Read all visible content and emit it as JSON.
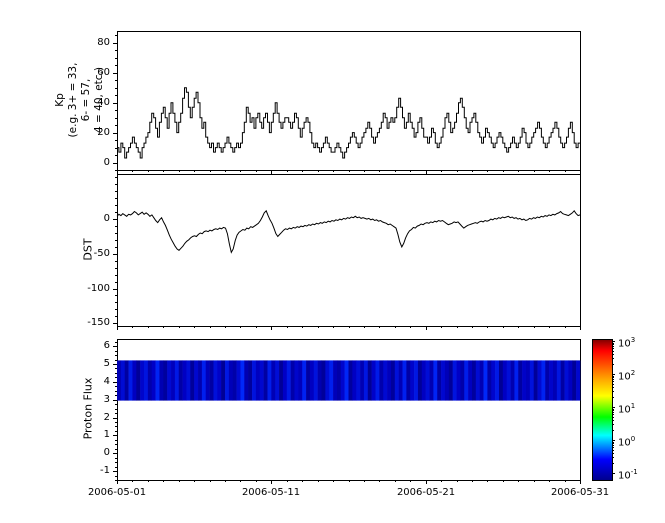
{
  "figure": {
    "background": "#ffffff",
    "x_axis": {
      "tick_labels": [
        "2006-05-01",
        "2006-05-11",
        "2006-05-21",
        "2006-05-31"
      ],
      "span_days": 30,
      "major_tick_days": 10,
      "minor_tick_days": 1
    }
  },
  "chart_data": [
    {
      "type": "line",
      "style": "step",
      "name": "kp-index",
      "ylabel_lines": [
        "Kp",
        "(e.g. 3+ = 33,",
        "6- = 57,",
        "4 = 40, etc.)"
      ],
      "yticks": [
        0,
        20,
        40,
        60,
        80
      ],
      "y_minor_step": 5,
      "ylim": [
        -5,
        88
      ],
      "line_color": "#000000",
      "x_start": "2006-05-01",
      "x_end": "2006-05-31",
      "sample_hours": 3,
      "values": [
        10,
        7,
        13,
        10,
        3,
        7,
        10,
        13,
        17,
        13,
        10,
        7,
        3,
        10,
        13,
        17,
        20,
        27,
        33,
        30,
        23,
        17,
        27,
        33,
        37,
        30,
        23,
        33,
        40,
        33,
        27,
        20,
        27,
        33,
        43,
        50,
        47,
        37,
        30,
        37,
        43,
        47,
        40,
        30,
        23,
        27,
        17,
        13,
        10,
        13,
        7,
        10,
        13,
        10,
        7,
        10,
        13,
        17,
        13,
        10,
        7,
        10,
        13,
        10,
        13,
        20,
        27,
        37,
        33,
        27,
        30,
        23,
        30,
        33,
        27,
        23,
        30,
        33,
        27,
        20,
        27,
        33,
        40,
        33,
        27,
        23,
        27,
        30,
        30,
        27,
        23,
        27,
        33,
        30,
        23,
        17,
        23,
        27,
        30,
        27,
        20,
        13,
        10,
        13,
        10,
        7,
        10,
        13,
        17,
        13,
        10,
        7,
        7,
        10,
        13,
        10,
        7,
        3,
        7,
        10,
        13,
        17,
        20,
        17,
        13,
        10,
        13,
        17,
        20,
        23,
        27,
        23,
        17,
        13,
        17,
        20,
        23,
        27,
        33,
        30,
        23,
        27,
        30,
        27,
        30,
        37,
        43,
        37,
        30,
        23,
        27,
        33,
        27,
        23,
        17,
        20,
        27,
        30,
        23,
        17,
        17,
        13,
        17,
        23,
        20,
        13,
        10,
        13,
        17,
        23,
        30,
        33,
        27,
        20,
        23,
        27,
        33,
        40,
        43,
        37,
        30,
        23,
        20,
        27,
        30,
        33,
        27,
        20,
        17,
        13,
        17,
        23,
        20,
        17,
        13,
        10,
        13,
        17,
        20,
        17,
        13,
        10,
        7,
        10,
        13,
        17,
        13,
        10,
        13,
        17,
        23,
        20,
        13,
        10,
        13,
        17,
        20,
        23,
        27,
        23,
        17,
        13,
        10,
        13,
        17,
        20,
        23,
        27,
        23,
        17,
        13,
        10,
        13,
        17,
        23,
        27,
        20,
        13,
        10,
        13
      ]
    },
    {
      "type": "line",
      "name": "dst-index",
      "ylabel": "DST",
      "yticks": [
        0,
        -50,
        -100,
        -150
      ],
      "y_minor_step": 10,
      "ylim": [
        -154,
        65
      ],
      "line_color": "#000000",
      "values": [
        4,
        7,
        5,
        8,
        6,
        4,
        7,
        6,
        8,
        11,
        9,
        6,
        8,
        10,
        7,
        9,
        7,
        4,
        6,
        2,
        -2,
        -5,
        -1,
        2,
        -4,
        -9,
        -16,
        -23,
        -29,
        -34,
        -39,
        -43,
        -45,
        -42,
        -39,
        -35,
        -32,
        -30,
        -27,
        -25,
        -24,
        -25,
        -22,
        -20,
        -21,
        -18,
        -17,
        -18,
        -16,
        -17,
        -15,
        -14,
        -15,
        -13,
        -14,
        -12,
        -13,
        -21,
        -36,
        -48,
        -43,
        -31,
        -23,
        -19,
        -17,
        -15,
        -16,
        -13,
        -14,
        -11,
        -12,
        -10,
        -8,
        -6,
        -2,
        3,
        9,
        12,
        5,
        -1,
        -6,
        -13,
        -21,
        -25,
        -22,
        -19,
        -16,
        -14,
        -15,
        -13,
        -14,
        -12,
        -13,
        -11,
        -12,
        -10,
        -11,
        -9,
        -10,
        -8,
        -9,
        -7,
        -8,
        -6,
        -7,
        -5,
        -6,
        -4,
        -5,
        -3,
        -4,
        -2,
        -3,
        -1,
        -2,
        0,
        -1,
        1,
        0,
        2,
        1,
        3,
        2,
        4,
        2,
        3,
        1,
        2,
        1,
        0,
        1,
        -1,
        0,
        -2,
        -1,
        -3,
        -2,
        -4,
        -5,
        -6,
        -8,
        -7,
        -9,
        -11,
        -13,
        -22,
        -33,
        -40,
        -35,
        -27,
        -21,
        -17,
        -15,
        -12,
        -13,
        -10,
        -9,
        -7,
        -8,
        -6,
        -5,
        -6,
        -4,
        -5,
        -3,
        -4,
        -2,
        -3,
        -2,
        -4,
        -6,
        -8,
        -7,
        -6,
        -4,
        -5,
        -4,
        -7,
        -10,
        -13,
        -11,
        -9,
        -8,
        -7,
        -6,
        -5,
        -6,
        -4,
        -3,
        -4,
        -2,
        -3,
        -2,
        0,
        -1,
        1,
        0,
        2,
        1,
        3,
        2,
        3,
        4,
        2,
        3,
        1,
        2,
        0,
        1,
        -1,
        0,
        -2,
        -1,
        1,
        0,
        2,
        1,
        3,
        2,
        4,
        3,
        5,
        4,
        6,
        5,
        7,
        6,
        8,
        9,
        11,
        8,
        7,
        6,
        5,
        7,
        9,
        12,
        8,
        5,
        6
      ]
    },
    {
      "type": "heatmap",
      "name": "proton-flux",
      "ylabel": "Proton Flux",
      "yticks": [
        6,
        5,
        4,
        3,
        2,
        1,
        0,
        -1
      ],
      "y_minor_step": 0.25,
      "ylim": [
        -1.5,
        6.4
      ],
      "band_y_range": [
        2.95,
        5.2
      ],
      "band_base_color": "#0000c8",
      "column_intensity": [
        0.35,
        0.62,
        0.18,
        0.8,
        0.45,
        0.1,
        0.55,
        0.72,
        0.28,
        0.5,
        0.9,
        0.33,
        0.15,
        0.6,
        0.42,
        0.77,
        0.22,
        0.48,
        0.65,
        0.12,
        0.58,
        0.3,
        0.85,
        0.4,
        0.2,
        0.68,
        0.52,
        0.08,
        0.75,
        0.38,
        0.25,
        0.6,
        0.95,
        0.32,
        0.14,
        0.7,
        0.44,
        0.58,
        0.2,
        0.82,
        0.36,
        0.64,
        0.1,
        0.5,
        0.78,
        0.26,
        0.55,
        0.4,
        0.88,
        0.18,
        0.46,
        0.7,
        0.3,
        0.12,
        0.62,
        0.84,
        0.38,
        0.24,
        0.56,
        0.92,
        0.16,
        0.48,
        0.66,
        0.34,
        0.74,
        0.08,
        0.52,
        0.8,
        0.28,
        0.6,
        0.42,
        0.14,
        0.68,
        0.36,
        0.86,
        0.22,
        0.54,
        0.76,
        0.1,
        0.46,
        0.64,
        0.32,
        0.9,
        0.2,
        0.58,
        0.38,
        0.12,
        0.72,
        0.5,
        0.26,
        0.82,
        0.44,
        0.16,
        0.62,
        0.34,
        0.94,
        0.24,
        0.56,
        0.78,
        0.08,
        0.48,
        0.66,
        0.3,
        0.86,
        0.18,
        0.52,
        0.4,
        0.7,
        0.12,
        0.6,
        0.88,
        0.26,
        0.54,
        0.36,
        0.74,
        0.2,
        0.64,
        0.46,
        0.1,
        0.58
      ],
      "colorbar": {
        "scale": "log",
        "ticks": [
          {
            "base": "10",
            "exp": "3"
          },
          {
            "base": "10",
            "exp": "2"
          },
          {
            "base": "10",
            "exp": "1"
          },
          {
            "base": "10",
            "exp": "0"
          },
          {
            "base": "10",
            "exp": "-1"
          }
        ],
        "gradient": [
          {
            "pos": 0.0,
            "color": "#800000"
          },
          {
            "pos": 0.08,
            "color": "#ff0000"
          },
          {
            "pos": 0.28,
            "color": "#ffa500"
          },
          {
            "pos": 0.4,
            "color": "#ffff00"
          },
          {
            "pos": 0.55,
            "color": "#00ff00"
          },
          {
            "pos": 0.68,
            "color": "#00ffff"
          },
          {
            "pos": 0.85,
            "color": "#0000ff"
          },
          {
            "pos": 1.0,
            "color": "#00008b"
          }
        ]
      }
    }
  ]
}
